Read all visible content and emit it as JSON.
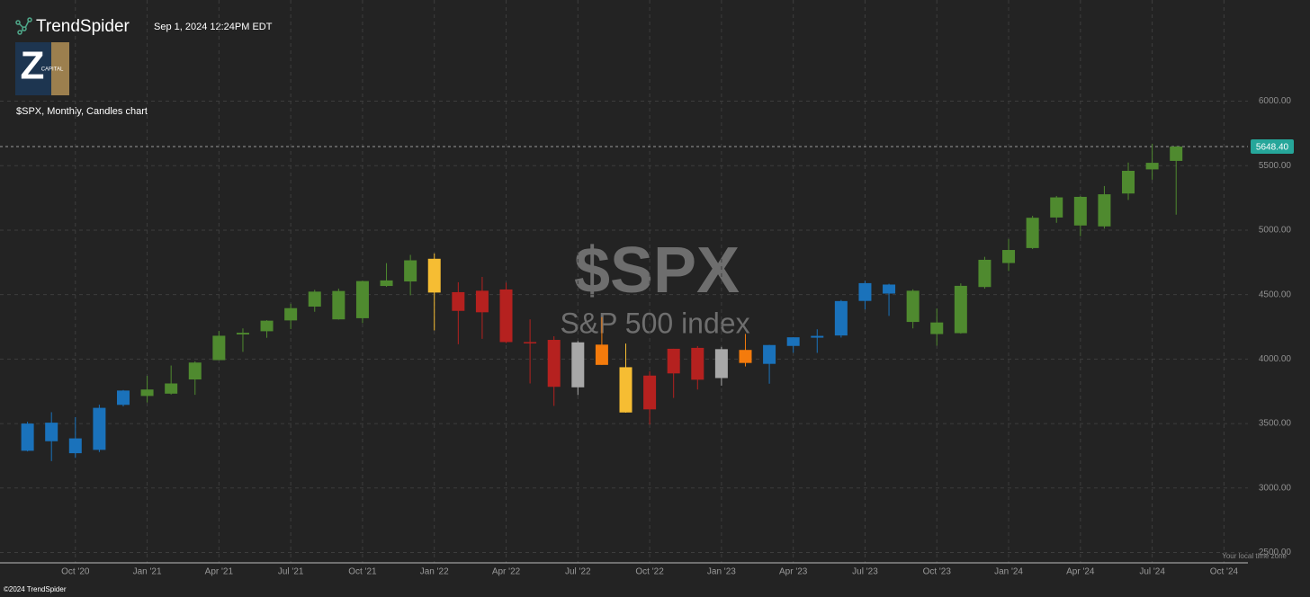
{
  "header": {
    "brand": "TrendSpider",
    "timestamp": "Sep 1, 2024 12:24PM EDT"
  },
  "logo": {
    "letter": "Z",
    "text": "CAPITAL"
  },
  "footer": {
    "copyright": "©2024 TrendSpider",
    "timezone_note": "Your local time zone"
  },
  "chart_data": {
    "type": "candlestick",
    "title": "$SPX, Monthly, Candles chart",
    "watermark": "$SPX",
    "watermark_subtitle": "S&P 500 index",
    "x": [
      "2020-08",
      "2020-09",
      "2020-10",
      "2020-11",
      "2020-12",
      "2021-01",
      "2021-02",
      "2021-03",
      "2021-04",
      "2021-05",
      "2021-06",
      "2021-07",
      "2021-08",
      "2021-09",
      "2021-10",
      "2021-11",
      "2021-12",
      "2022-01",
      "2022-02",
      "2022-03",
      "2022-04",
      "2022-05",
      "2022-06",
      "2022-07",
      "2022-08",
      "2022-09",
      "2022-10",
      "2022-11",
      "2022-12",
      "2023-01",
      "2023-02",
      "2023-03",
      "2023-04",
      "2023-05",
      "2023-06",
      "2023-07",
      "2023-08",
      "2023-09",
      "2023-10",
      "2023-11",
      "2023-12",
      "2024-01",
      "2024-02",
      "2024-03",
      "2024-04",
      "2024-05",
      "2024-06",
      "2024-07",
      "2024-08"
    ],
    "open": [
      3289,
      3507,
      3385,
      3296,
      3645,
      3764,
      3732,
      3842,
      3992,
      4191,
      4216,
      4300,
      4407,
      4528,
      4317,
      4610,
      4602,
      4778,
      4519,
      4363,
      4540,
      4130,
      4149,
      3781,
      4112,
      3937,
      3610,
      3889,
      4087,
      3853,
      4071,
      3963,
      4102,
      4166,
      4183,
      4451,
      4578,
      4530,
      4284,
      4201,
      4559,
      4745,
      4861,
      5098,
      5258,
      5029,
      5284,
      5471,
      5537
    ],
    "high": [
      3514,
      3588,
      3550,
      3646,
      3760,
      3870,
      3950,
      3983,
      4218,
      4238,
      4302,
      4429,
      4537,
      4546,
      4608,
      4744,
      4808,
      4819,
      4596,
      4637,
      4593,
      4308,
      4177,
      4140,
      4325,
      4120,
      3906,
      4080,
      4101,
      4095,
      4195,
      4110,
      4170,
      4231,
      4458,
      4607,
      4584,
      4541,
      4393,
      4587,
      4793,
      4932,
      5111,
      5265,
      5264,
      5342,
      5524,
      5670,
      5651
    ],
    "low": [
      3284,
      3209,
      3234,
      3279,
      3633,
      3663,
      3725,
      3723,
      3992,
      4056,
      4165,
      4233,
      4367,
      4306,
      4279,
      4560,
      4495,
      4222,
      4115,
      4157,
      4124,
      3811,
      3637,
      3721,
      3955,
      3584,
      3492,
      3699,
      3764,
      3794,
      3943,
      3809,
      4049,
      4048,
      4167,
      4385,
      4335,
      4238,
      4104,
      4197,
      4546,
      4683,
      4853,
      5057,
      4953,
      5012,
      5234,
      5391,
      5120
    ],
    "close": [
      3500,
      3363,
      3270,
      3622,
      3756,
      3714,
      3811,
      3973,
      4181,
      4204,
      4298,
      4395,
      4523,
      4308,
      4605,
      4567,
      4766,
      4516,
      4374,
      4530,
      4132,
      4132,
      3785,
      4130,
      3955,
      3586,
      3872,
      4080,
      3840,
      4077,
      3970,
      4109,
      4169,
      4180,
      4450,
      4589,
      4508,
      4288,
      4194,
      4568,
      4770,
      4846,
      5096,
      5254,
      5036,
      5278,
      5460,
      5522,
      5648
    ],
    "colors": [
      "#1a72bb",
      "#1a72bb",
      "#1a72bb",
      "#1a72bb",
      "#1a72bb",
      "#4f8a2f",
      "#4f8a2f",
      "#4f8a2f",
      "#4f8a2f",
      "#4f8a2f",
      "#4f8a2f",
      "#4f8a2f",
      "#4f8a2f",
      "#4f8a2f",
      "#4f8a2f",
      "#4f8a2f",
      "#4f8a2f",
      "#f6bd33",
      "#b5211f",
      "#b5211f",
      "#b5211f",
      "#b5211f",
      "#b5211f",
      "#a8a8a8",
      "#f47b0c",
      "#f6bd33",
      "#b5211f",
      "#b5211f",
      "#b5211f",
      "#a8a8a8",
      "#f47b0c",
      "#1a72bb",
      "#1a72bb",
      "#1a72bb",
      "#1a72bb",
      "#1a72bb",
      "#1a72bb",
      "#4f8a2f",
      "#4f8a2f",
      "#4f8a2f",
      "#4f8a2f",
      "#4f8a2f",
      "#4f8a2f",
      "#4f8a2f",
      "#4f8a2f",
      "#4f8a2f",
      "#4f8a2f",
      "#4f8a2f",
      "#4f8a2f"
    ],
    "xlim": [
      "2020-07",
      "2024-11"
    ],
    "xticks": [
      {
        "value": "2020-10",
        "label": "Oct '20"
      },
      {
        "value": "2021-01",
        "label": "Jan '21"
      },
      {
        "value": "2021-04",
        "label": "Apr '21"
      },
      {
        "value": "2021-07",
        "label": "Jul '21"
      },
      {
        "value": "2021-10",
        "label": "Oct '21"
      },
      {
        "value": "2022-01",
        "label": "Jan '22"
      },
      {
        "value": "2022-04",
        "label": "Apr '22"
      },
      {
        "value": "2022-07",
        "label": "Jul '22"
      },
      {
        "value": "2022-10",
        "label": "Oct '22"
      },
      {
        "value": "2023-01",
        "label": "Jan '23"
      },
      {
        "value": "2023-04",
        "label": "Apr '23"
      },
      {
        "value": "2023-07",
        "label": "Jul '23"
      },
      {
        "value": "2023-10",
        "label": "Oct '23"
      },
      {
        "value": "2024-01",
        "label": "Jan '24"
      },
      {
        "value": "2024-04",
        "label": "Apr '24"
      },
      {
        "value": "2024-07",
        "label": "Jul '24"
      },
      {
        "value": "2024-10",
        "label": "Oct '24"
      }
    ],
    "ylim": [
      2420,
      6680
    ],
    "yticks": [
      {
        "value": 2500,
        "label": "2500.00"
      },
      {
        "value": 3000,
        "label": "3000.00"
      },
      {
        "value": 3500,
        "label": "3500.00"
      },
      {
        "value": 4000,
        "label": "4000.00"
      },
      {
        "value": 4500,
        "label": "4500.00"
      },
      {
        "value": 5000,
        "label": "5000.00"
      },
      {
        "value": 5500,
        "label": "5500.00"
      },
      {
        "value": 6000,
        "label": "6000.00"
      }
    ],
    "last_price": {
      "value": 5648.4,
      "label": "5648.40",
      "color": "#26a69a"
    },
    "grid": true
  }
}
